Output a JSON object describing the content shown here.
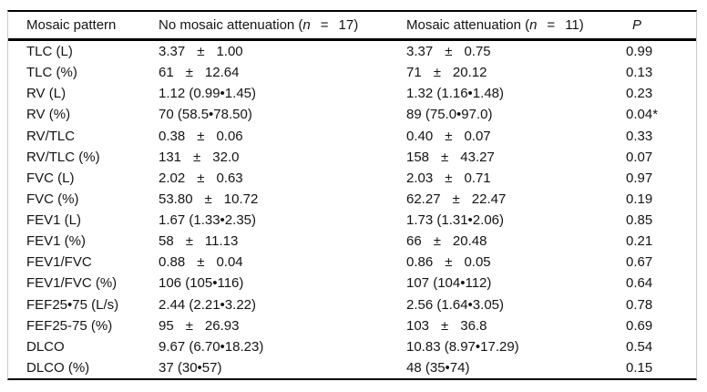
{
  "table": {
    "pm_symbol": "±",
    "headers": {
      "col1": "Mosaic pattern",
      "col2": {
        "pre": "No mosaic attenuation (",
        "n": "n",
        "eq": "=",
        "count": "17)"
      },
      "col3": {
        "pre": "Mosaic attenuation (",
        "n": "n",
        "eq": "=",
        "count": "11)"
      },
      "col4": "P"
    },
    "rows": [
      {
        "label": "TLC (L)",
        "no_mosaic": {
          "v1": "3.37",
          "v2": "1.00"
        },
        "mosaic": {
          "v1": "3.37",
          "v2": "0.75"
        },
        "p": "0.99"
      },
      {
        "label": "TLC (%)",
        "no_mosaic": {
          "v1": "61",
          "v2": "12.64"
        },
        "mosaic": {
          "v1": "71",
          "v2": "20.12"
        },
        "p": "0.13"
      },
      {
        "label": "RV (L)",
        "no_mosaic": {
          "text": "1.12 (0.99•1.45)"
        },
        "mosaic": {
          "text": "1.32 (1.16•1.48)"
        },
        "p": "0.23"
      },
      {
        "label": "RV (%)",
        "no_mosaic": {
          "text": "70 (58.5•78.50)"
        },
        "mosaic": {
          "text": "89 (75.0•97.0)"
        },
        "p": "0.04*"
      },
      {
        "label": "RV/TLC",
        "no_mosaic": {
          "v1": "0.38",
          "v2": "0.06"
        },
        "mosaic": {
          "v1": "0.40",
          "v2": "0.07"
        },
        "p": "0.33"
      },
      {
        "label": "RV/TLC (%)",
        "no_mosaic": {
          "v1": "131",
          "v2": "32.0"
        },
        "mosaic": {
          "v1": "158",
          "v2": "43.27"
        },
        "p": "0.07"
      },
      {
        "label": "FVC (L)",
        "no_mosaic": {
          "v1": "2.02",
          "v2": "0.63"
        },
        "mosaic": {
          "v1": "2.03",
          "v2": "0.71"
        },
        "p": "0.97"
      },
      {
        "label": "FVC (%)",
        "no_mosaic": {
          "v1": "53.80",
          "v2": "10.72"
        },
        "mosaic": {
          "v1": "62.27",
          "v2": "22.47"
        },
        "p": "0.19"
      },
      {
        "label": "FEV1 (L)",
        "no_mosaic": {
          "text": "1.67 (1.33•2.35)"
        },
        "mosaic": {
          "text": "1.73 (1.31•2.06)"
        },
        "p": "0.85"
      },
      {
        "label": "FEV1 (%)",
        "no_mosaic": {
          "v1": "58",
          "v2": "11.13"
        },
        "mosaic": {
          "v1": "66",
          "v2": "20.48"
        },
        "p": "0.21"
      },
      {
        "label": "FEV1/FVC",
        "no_mosaic": {
          "v1": "0.88",
          "v2": "0.04"
        },
        "mosaic": {
          "v1": "0.86",
          "v2": "0.05"
        },
        "p": "0.67"
      },
      {
        "label": "FEV1/FVC (%)",
        "no_mosaic": {
          "text": "106 (105•116)"
        },
        "mosaic": {
          "text": "107 (104•112)"
        },
        "p": "0.64"
      },
      {
        "label": "FEF25•75 (L/s)",
        "no_mosaic": {
          "text": "2.44 (2.21•3.22)"
        },
        "mosaic": {
          "text": "2.56 (1.64•3.05)"
        },
        "p": "0.78"
      },
      {
        "label": "FEF25-75 (%)",
        "no_mosaic": {
          "v1": "95",
          "v2": "26.93"
        },
        "mosaic": {
          "v1": "103",
          "v2": "36.8"
        },
        "p": "0.69"
      },
      {
        "label": "DLCO",
        "no_mosaic": {
          "text": "9.67 (6.70•18.23)"
        },
        "mosaic": {
          "text": "10.83 (8.97•17.29)"
        },
        "p": "0.54"
      },
      {
        "label": "DLCO (%)",
        "no_mosaic": {
          "text": "37 (30•57)"
        },
        "mosaic": {
          "text": "48 (35•74)"
        },
        "p": "0.15"
      }
    ]
  }
}
